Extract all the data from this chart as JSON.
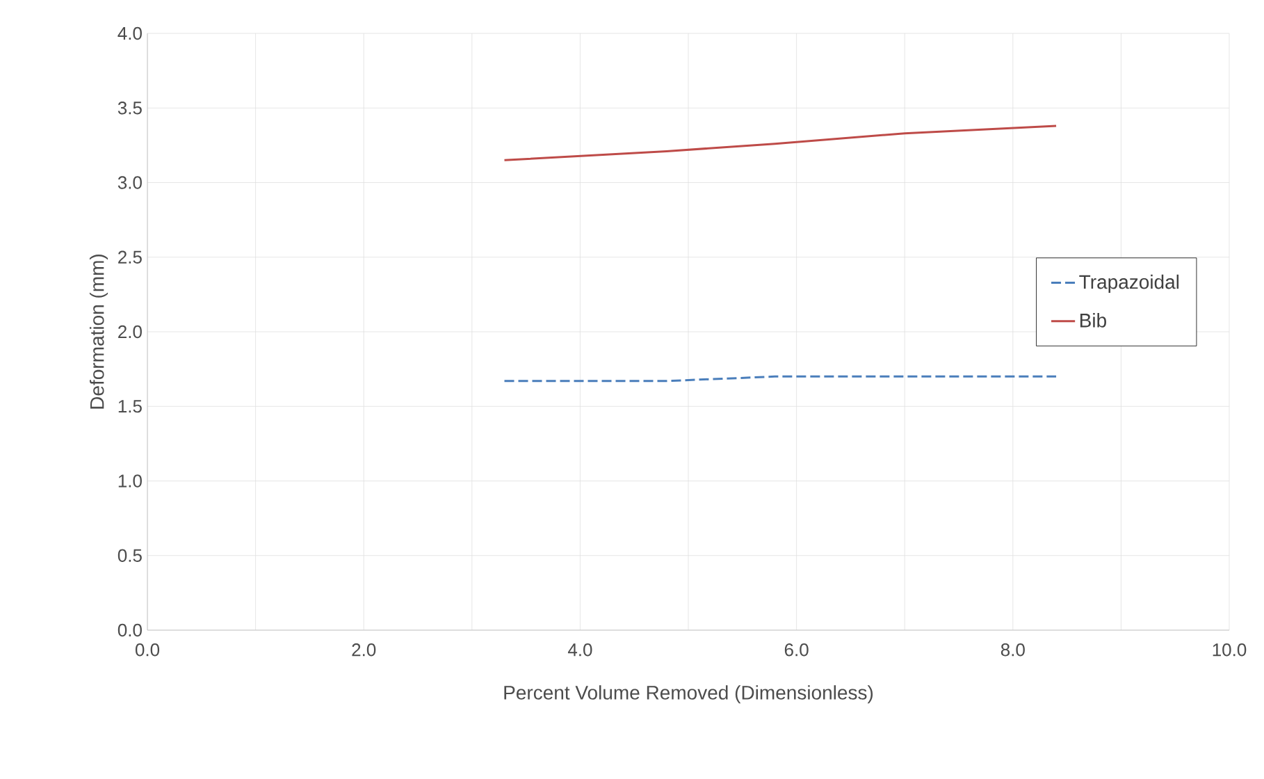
{
  "chart_data": {
    "type": "line",
    "xlabel": "Percent Volume  Removed (Dimensionless)",
    "ylabel": "Deformation (mm)",
    "xlim": [
      0,
      10
    ],
    "xticks": [
      {
        "value": 0,
        "label": "0.0"
      },
      {
        "value": 1,
        "label": null
      },
      {
        "value": 2,
        "label": "2.0"
      },
      {
        "value": 3,
        "label": null
      },
      {
        "value": 4,
        "label": "4.0"
      },
      {
        "value": 5,
        "label": null
      },
      {
        "value": 6,
        "label": "6.0"
      },
      {
        "value": 7,
        "label": null
      },
      {
        "value": 8,
        "label": "8.0"
      },
      {
        "value": 9,
        "label": null
      },
      {
        "value": 10,
        "label": "10.0"
      }
    ],
    "ylim": [
      0,
      4
    ],
    "yticks": [
      {
        "value": 0,
        "label": "0.0"
      },
      {
        "value": 0.5,
        "label": "0.5"
      },
      {
        "value": 1,
        "label": "1.0"
      },
      {
        "value": 1.5,
        "label": "1.5"
      },
      {
        "value": 2,
        "label": "2.0"
      },
      {
        "value": 2.5,
        "label": "2.5"
      },
      {
        "value": 3,
        "label": "3.0"
      },
      {
        "value": 3.5,
        "label": "3.5"
      },
      {
        "value": 4,
        "label": "4.0"
      }
    ],
    "grid": true,
    "legend": "right",
    "marker": "none",
    "series": [
      {
        "name": "Trapazoidal",
        "color": "#4a7ebb",
        "line_style": "dashed",
        "x": [
          3.3,
          4.8,
          5.8,
          7.0,
          8.4
        ],
        "values": [
          1.67,
          1.67,
          1.7,
          1.7,
          1.7
        ]
      },
      {
        "name": "Bib",
        "color": "#be4b48",
        "line_style": "solid",
        "x": [
          3.3,
          4.8,
          5.8,
          7.0,
          8.4
        ],
        "values": [
          3.15,
          3.21,
          3.26,
          3.33,
          3.38
        ]
      }
    ]
  }
}
